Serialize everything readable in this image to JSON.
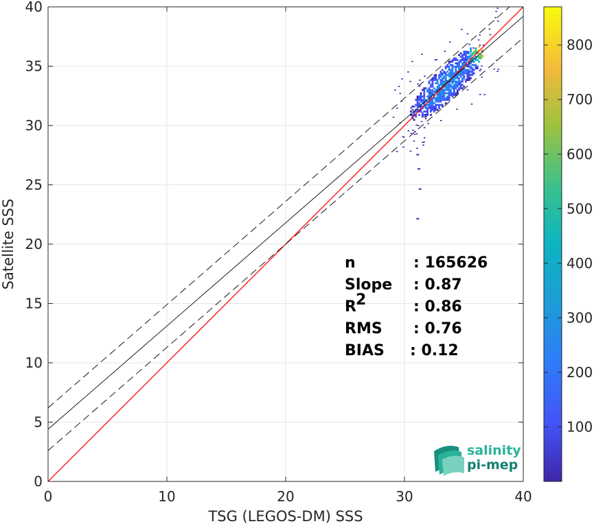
{
  "chart_data": {
    "type": "heatmap",
    "xlabel": "TSG (LEGOS-DM) SSS",
    "ylabel": "Satellite SSS",
    "xlim": [
      0,
      40
    ],
    "ylim": [
      0,
      40
    ],
    "xticks": [
      "0",
      "10",
      "20",
      "30",
      "40"
    ],
    "yticks": [
      "0",
      "5",
      "10",
      "15",
      "20",
      "25",
      "30",
      "35",
      "40"
    ],
    "grid": true,
    "colorbar": {
      "range": [
        0,
        870
      ],
      "ticks": [
        "100",
        "200",
        "300",
        "400",
        "500",
        "600",
        "700",
        "800"
      ],
      "colormap": "parula"
    },
    "lines": [
      {
        "kind": "one-to-one",
        "color": "#ff0000",
        "style": "solid",
        "x": [
          0,
          40
        ],
        "y": [
          0,
          40
        ]
      },
      {
        "kind": "regression",
        "color": "#000000",
        "style": "solid",
        "x": [
          0,
          40
        ],
        "y": [
          4.4,
          39.2
        ]
      },
      {
        "kind": "regression-upper",
        "color": "#000000",
        "style": "dashed",
        "x": [
          0,
          40
        ],
        "y": [
          6.2,
          41.0
        ]
      },
      {
        "kind": "regression-lower",
        "color": "#000000",
        "style": "dashed",
        "x": [
          0,
          40
        ],
        "y": [
          2.6,
          37.4
        ]
      }
    ],
    "density": {
      "center": [
        33.5,
        33.5
      ],
      "x_extent": [
        29.2,
        37.0
      ],
      "y_extent": [
        29.3,
        37.2
      ],
      "peak": [
        36.5,
        36.4
      ],
      "outliers": [
        [
          31.0,
          27.6
        ],
        [
          31.1,
          26.4
        ],
        [
          31.2,
          24.7
        ],
        [
          31.0,
          22.2
        ]
      ]
    },
    "stats": [
      {
        "label": "n",
        "value": ": 165626"
      },
      {
        "label": "Slope",
        "value": ": 0.87"
      },
      {
        "label": "R",
        "sup": "2",
        "value": ": 0.86"
      },
      {
        "label": "RMS",
        "value": ": 0.76"
      },
      {
        "label": "BIAS",
        "value": ": 0.12"
      }
    ]
  },
  "logo": {
    "line1": "salinity",
    "line2": "pi-mep",
    "color1": "#2bb39a",
    "color2": "#15806f"
  }
}
